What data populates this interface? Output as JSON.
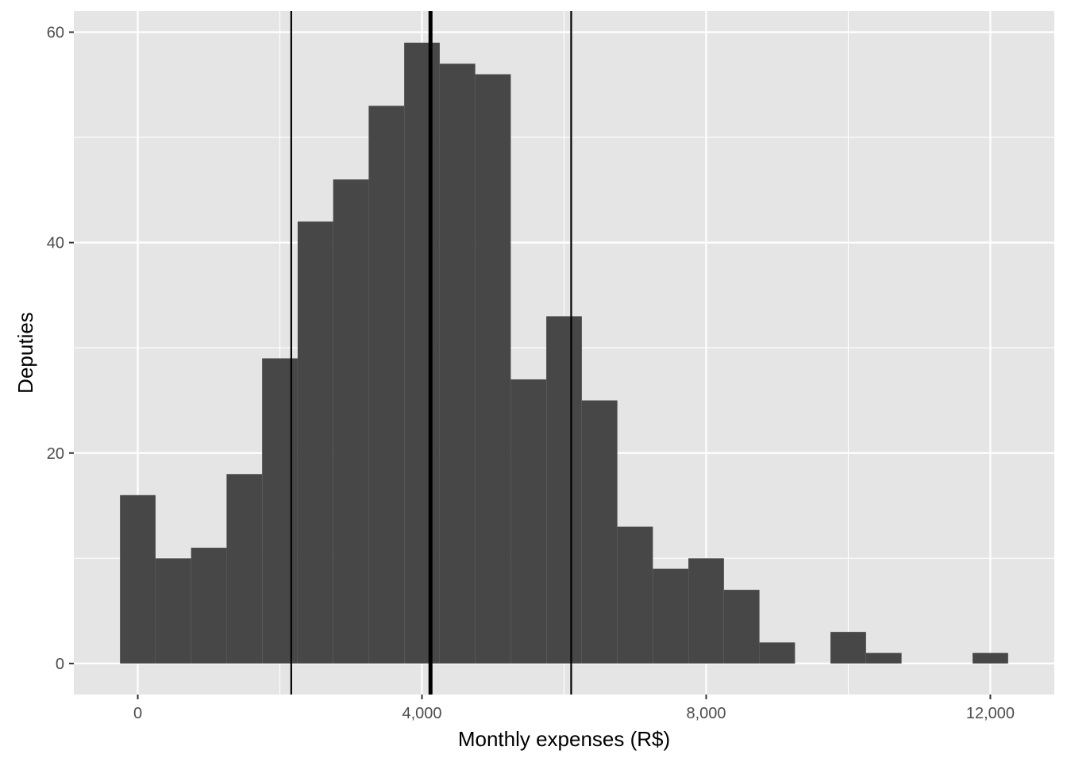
{
  "chart_data": {
    "type": "histogram",
    "xlabel": "Monthly expenses (R$)",
    "ylabel": "Deputies",
    "xlim": [
      -900,
      12900
    ],
    "ylim": [
      -2.95,
      62
    ],
    "x_ticks": [
      0,
      4000,
      8000,
      12000
    ],
    "x_tick_labels": [
      "0",
      "4,000",
      "8,000",
      "12,000"
    ],
    "y_ticks": [
      0,
      20,
      40,
      60
    ],
    "y_tick_labels": [
      "0",
      "20",
      "40",
      "60"
    ],
    "bin_width": 500,
    "bins": [
      {
        "x0": -250,
        "x1": 250,
        "count": 16
      },
      {
        "x0": 250,
        "x1": 750,
        "count": 10
      },
      {
        "x0": 750,
        "x1": 1250,
        "count": 11
      },
      {
        "x0": 1250,
        "x1": 1750,
        "count": 18
      },
      {
        "x0": 1750,
        "x1": 2250,
        "count": 29
      },
      {
        "x0": 2250,
        "x1": 2750,
        "count": 42
      },
      {
        "x0": 2750,
        "x1": 3250,
        "count": 46
      },
      {
        "x0": 3250,
        "x1": 3750,
        "count": 53
      },
      {
        "x0": 3750,
        "x1": 4250,
        "count": 59
      },
      {
        "x0": 4250,
        "x1": 4750,
        "count": 57
      },
      {
        "x0": 4750,
        "x1": 5250,
        "count": 56
      },
      {
        "x0": 5250,
        "x1": 5750,
        "count": 27
      },
      {
        "x0": 5750,
        "x1": 6250,
        "count": 33
      },
      {
        "x0": 6250,
        "x1": 6750,
        "count": 25
      },
      {
        "x0": 6750,
        "x1": 7250,
        "count": 13
      },
      {
        "x0": 7250,
        "x1": 7750,
        "count": 9
      },
      {
        "x0": 7750,
        "x1": 8250,
        "count": 10
      },
      {
        "x0": 8250,
        "x1": 8750,
        "count": 7
      },
      {
        "x0": 8750,
        "x1": 9250,
        "count": 2
      },
      {
        "x0": 9250,
        "x1": 9750,
        "count": 0
      },
      {
        "x0": 9750,
        "x1": 10250,
        "count": 3
      },
      {
        "x0": 10250,
        "x1": 10750,
        "count": 1
      },
      {
        "x0": 10750,
        "x1": 11250,
        "count": 0
      },
      {
        "x0": 11250,
        "x1": 11750,
        "count": 0
      },
      {
        "x0": 11750,
        "x1": 12250,
        "count": 1
      }
    ],
    "vertical_lines": [
      {
        "x": 2160,
        "style": "thin"
      },
      {
        "x": 4120,
        "style": "thick"
      },
      {
        "x": 6100,
        "style": "thin"
      }
    ],
    "grid": true,
    "colors": {
      "panel": "#e5e5e5",
      "grid": "#ffffff",
      "bar": "#474747",
      "vline": "#000000"
    }
  }
}
